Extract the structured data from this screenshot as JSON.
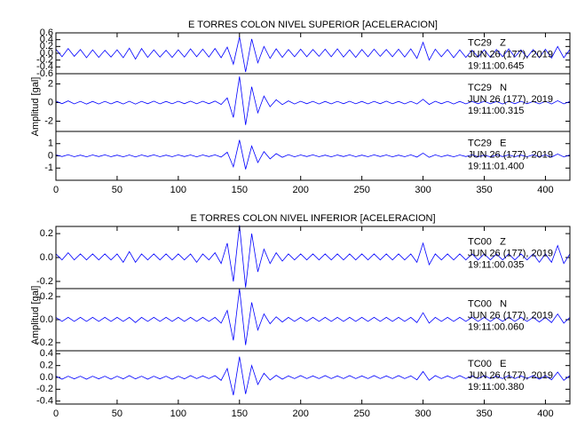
{
  "chart_data": [
    {
      "type": "waveform",
      "title": "E TORRES COLON NIVEL SUPERIOR [ACELERACION]",
      "y_label": "Amplitud [gal]",
      "color": "#0000ff",
      "xlim": [
        0,
        420
      ],
      "xticks": [
        0,
        50,
        100,
        150,
        200,
        250,
        300,
        350,
        400
      ],
      "x": [
        0,
        5,
        10,
        15,
        20,
        25,
        30,
        35,
        40,
        45,
        50,
        55,
        60,
        65,
        70,
        75,
        80,
        85,
        90,
        95,
        100,
        105,
        110,
        115,
        120,
        125,
        130,
        135,
        140,
        145,
        150,
        155,
        160,
        165,
        170,
        175,
        180,
        185,
        190,
        195,
        200,
        205,
        210,
        215,
        220,
        225,
        230,
        235,
        240,
        245,
        250,
        255,
        260,
        265,
        270,
        275,
        280,
        285,
        290,
        295,
        300,
        305,
        310,
        315,
        320,
        325,
        330,
        335,
        340,
        345,
        350,
        355,
        360,
        365,
        370,
        375,
        380,
        385,
        390,
        395,
        400,
        405,
        410,
        415,
        420
      ],
      "panels": [
        {
          "name": "TC29   Z",
          "date": "JUN 26 (177), 2019",
          "time": "19:11:00.645",
          "ylim": [
            -0.6,
            0.6
          ],
          "yticks": [
            -0.6,
            -0.4,
            -0.2,
            {
              "value": 0,
              "label": "0.0"
            },
            0.2,
            0.4,
            0.6
          ],
          "values": [
            0.12,
            0.1,
            0.14,
            0.09,
            0.11,
            0.13,
            0.1,
            0.12,
            0.09,
            0.11,
            0.1,
            0.13,
            0.15,
            0.17,
            0.14,
            0.12,
            0.1,
            0.11,
            0.09,
            0.12,
            0.1,
            0.11,
            0.13,
            0.1,
            0.12,
            0.11,
            0.14,
            0.13,
            0.18,
            0.32,
            0.48,
            0.55,
            0.42,
            0.28,
            0.2,
            0.15,
            0.13,
            0.12,
            0.11,
            0.1,
            0.12,
            0.1,
            0.11,
            0.09,
            0.12,
            0.1,
            0.13,
            0.11,
            0.1,
            0.12,
            0.11,
            0.1,
            0.12,
            0.09,
            0.11,
            0.1,
            0.12,
            0.11,
            0.13,
            0.15,
            0.32,
            0.2,
            0.12,
            0.1,
            0.11,
            0.13,
            0.1,
            0.12,
            0.09,
            0.11,
            0.1,
            0.12,
            0.11,
            0.1,
            0.13,
            0.11,
            0.1,
            0.12,
            0.11,
            0.13,
            0.12,
            0.14,
            0.2,
            0.13,
            0.11
          ]
        },
        {
          "name": "TC29   N",
          "date": "JUN 26 (177), 2019",
          "time": "19:11:00.315",
          "ylim": [
            -3.1,
            3.1
          ],
          "yticks": [
            -2,
            0,
            2
          ],
          "values": [
            0.15,
            0.12,
            0.18,
            0.14,
            0.13,
            0.16,
            0.12,
            0.15,
            0.13,
            0.14,
            0.12,
            0.15,
            0.14,
            0.16,
            0.13,
            0.12,
            0.15,
            0.14,
            0.12,
            0.13,
            0.14,
            0.12,
            0.15,
            0.13,
            0.14,
            0.12,
            0.16,
            0.2,
            0.5,
            1.6,
            2.8,
            2.4,
            1.7,
            1.1,
            0.7,
            0.45,
            0.3,
            0.22,
            0.18,
            0.15,
            0.14,
            0.12,
            0.13,
            0.15,
            0.12,
            0.14,
            0.13,
            0.12,
            0.14,
            0.13,
            0.12,
            0.14,
            0.13,
            0.12,
            0.15,
            0.13,
            0.12,
            0.14,
            0.13,
            0.15,
            0.35,
            0.2,
            0.14,
            0.12,
            0.13,
            0.15,
            0.12,
            0.14,
            0.13,
            0.12,
            0.14,
            0.13,
            0.12,
            0.15,
            0.13,
            0.12,
            0.14,
            0.13,
            0.12,
            0.14,
            0.13,
            0.15,
            0.2,
            0.14,
            0.12
          ]
        },
        {
          "name": "TC29   E",
          "date": "JUN 26 (177), 2019",
          "time": "19:11:01.400",
          "ylim": [
            -2,
            2
          ],
          "yticks": [
            -1,
            0,
            1
          ],
          "values": [
            0.08,
            0.06,
            0.09,
            0.07,
            0.06,
            0.08,
            0.07,
            0.06,
            0.08,
            0.07,
            0.06,
            0.08,
            0.07,
            0.09,
            0.07,
            0.06,
            0.08,
            0.07,
            0.06,
            0.07,
            0.08,
            0.06,
            0.07,
            0.08,
            0.07,
            0.06,
            0.08,
            0.1,
            0.3,
            0.9,
            1.3,
            1.1,
            0.8,
            0.55,
            0.35,
            0.25,
            0.18,
            0.12,
            0.1,
            0.08,
            0.07,
            0.06,
            0.08,
            0.07,
            0.06,
            0.08,
            0.07,
            0.06,
            0.08,
            0.07,
            0.06,
            0.07,
            0.08,
            0.06,
            0.07,
            0.08,
            0.06,
            0.07,
            0.08,
            0.1,
            0.22,
            0.12,
            0.08,
            0.07,
            0.06,
            0.08,
            0.07,
            0.06,
            0.08,
            0.07,
            0.06,
            0.08,
            0.07,
            0.06,
            0.08,
            0.07,
            0.06,
            0.07,
            0.08,
            0.07,
            0.08,
            0.1,
            0.15,
            0.09,
            0.07
          ]
        }
      ]
    },
    {
      "type": "waveform",
      "title": "E TORRES COLON NIVEL INFERIOR [ACELERACION]",
      "y_label": "Amplitud [gal]",
      "color": "#0000ff",
      "xlim": [
        0,
        420
      ],
      "xticks": [
        0,
        50,
        100,
        150,
        200,
        250,
        300,
        350,
        400
      ],
      "x": [
        0,
        5,
        10,
        15,
        20,
        25,
        30,
        35,
        40,
        45,
        50,
        55,
        60,
        65,
        70,
        75,
        80,
        85,
        90,
        95,
        100,
        105,
        110,
        115,
        120,
        125,
        130,
        135,
        140,
        145,
        150,
        155,
        160,
        165,
        170,
        175,
        180,
        185,
        190,
        195,
        200,
        205,
        210,
        215,
        220,
        225,
        230,
        235,
        240,
        245,
        250,
        255,
        260,
        265,
        270,
        275,
        280,
        285,
        290,
        295,
        300,
        305,
        310,
        315,
        320,
        325,
        330,
        335,
        340,
        345,
        350,
        355,
        360,
        365,
        370,
        375,
        380,
        385,
        390,
        395,
        400,
        405,
        410,
        415,
        420
      ],
      "panels": [
        {
          "name": "TC00   Z",
          "date": "JUN 26 (177), 2019",
          "time": "19:11:00.035",
          "ylim": [
            -0.26,
            0.26
          ],
          "yticks": [
            -0.2,
            {
              "value": 0,
              "label": "0.0"
            },
            0.2
          ],
          "values": [
            0.03,
            0.02,
            0.04,
            0.02,
            0.03,
            0.02,
            0.03,
            0.02,
            0.03,
            0.02,
            0.03,
            0.04,
            0.05,
            0.04,
            0.03,
            0.02,
            0.03,
            0.02,
            0.03,
            0.02,
            0.03,
            0.02,
            0.03,
            0.04,
            0.03,
            0.02,
            0.04,
            0.05,
            0.12,
            0.2,
            0.27,
            0.25,
            0.2,
            0.12,
            0.07,
            0.05,
            0.04,
            0.03,
            0.03,
            0.02,
            0.03,
            0.02,
            0.03,
            0.02,
            0.03,
            0.02,
            0.03,
            0.02,
            0.03,
            0.02,
            0.03,
            0.02,
            0.03,
            0.02,
            0.03,
            0.02,
            0.03,
            0.02,
            0.03,
            0.04,
            0.12,
            0.06,
            0.03,
            0.02,
            0.03,
            0.02,
            0.03,
            0.02,
            0.03,
            0.02,
            0.03,
            0.02,
            0.03,
            0.02,
            0.03,
            0.02,
            0.03,
            0.02,
            0.03,
            0.04,
            0.03,
            0.04,
            0.1,
            0.05,
            0.03
          ]
        },
        {
          "name": "TC00   N",
          "date": "JUN 26 (177), 2019",
          "time": "19:11:00.060",
          "ylim": [
            -0.27,
            0.27
          ],
          "yticks": [
            -0.2,
            {
              "value": 0,
              "label": "0.0"
            },
            0.2
          ],
          "values": [
            0.02,
            0.015,
            0.02,
            0.015,
            0.02,
            0.015,
            0.02,
            0.015,
            0.02,
            0.015,
            0.02,
            0.015,
            0.02,
            0.025,
            0.02,
            0.015,
            0.02,
            0.015,
            0.02,
            0.015,
            0.02,
            0.015,
            0.02,
            0.015,
            0.02,
            0.015,
            0.02,
            0.03,
            0.08,
            0.18,
            0.27,
            0.22,
            0.15,
            0.09,
            0.05,
            0.035,
            0.025,
            0.02,
            0.02,
            0.015,
            0.02,
            0.015,
            0.02,
            0.015,
            0.02,
            0.015,
            0.02,
            0.015,
            0.02,
            0.015,
            0.02,
            0.015,
            0.02,
            0.015,
            0.02,
            0.015,
            0.02,
            0.015,
            0.02,
            0.025,
            0.06,
            0.03,
            0.02,
            0.015,
            0.02,
            0.015,
            0.02,
            0.015,
            0.02,
            0.015,
            0.02,
            0.015,
            0.02,
            0.015,
            0.02,
            0.015,
            0.02,
            0.015,
            0.02,
            0.02,
            0.02,
            0.025,
            0.05,
            0.03,
            0.02
          ]
        },
        {
          "name": "TC00   E",
          "date": "JUN 26 (177), 2019",
          "time": "19:11:00.380",
          "ylim": [
            -0.45,
            0.45
          ],
          "yticks": [
            -0.4,
            -0.2,
            {
              "value": 0,
              "label": "0.0"
            },
            0.2,
            0.4
          ],
          "values": [
            0.02,
            0.03,
            0.02,
            0.025,
            0.02,
            0.03,
            0.02,
            0.025,
            0.02,
            0.03,
            0.02,
            0.025,
            0.03,
            0.025,
            0.02,
            0.03,
            0.02,
            0.025,
            0.02,
            0.03,
            0.02,
            0.025,
            0.03,
            0.02,
            0.025,
            0.02,
            0.03,
            0.05,
            0.15,
            0.3,
            0.35,
            0.28,
            0.2,
            0.12,
            0.07,
            0.045,
            0.035,
            0.03,
            0.025,
            0.02,
            0.03,
            0.02,
            0.025,
            0.02,
            0.03,
            0.02,
            0.025,
            0.02,
            0.03,
            0.02,
            0.025,
            0.02,
            0.03,
            0.02,
            0.025,
            0.02,
            0.03,
            0.02,
            0.025,
            0.04,
            0.1,
            0.05,
            0.03,
            0.02,
            0.025,
            0.02,
            0.03,
            0.02,
            0.025,
            0.02,
            0.03,
            0.02,
            0.025,
            0.02,
            0.03,
            0.02,
            0.025,
            0.02,
            0.03,
            0.03,
            0.03,
            0.04,
            0.09,
            0.05,
            0.03
          ]
        }
      ]
    }
  ]
}
